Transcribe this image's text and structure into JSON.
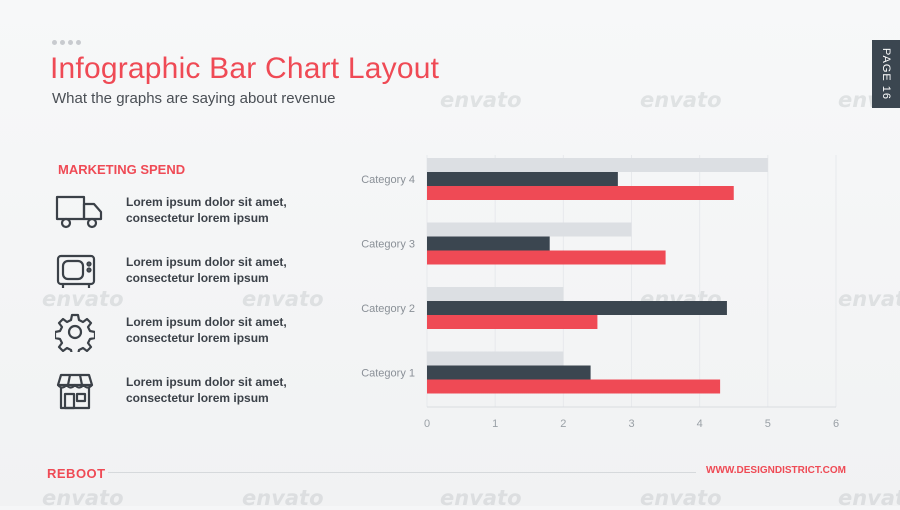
{
  "watermark": "envato",
  "header": {
    "title": "Infographic Bar Chart Layout",
    "subtitle": "What the graphs are saying about revenue",
    "page_tab": "PAGE 16"
  },
  "left_panel": {
    "heading": "MARKETING SPEND",
    "items": [
      {
        "icon": "truck-icon",
        "line1": "Lorem ipsum dolor sit amet,",
        "line2": "consectetur lorem ipsum"
      },
      {
        "icon": "tv-icon",
        "line1": "Lorem ipsum dolor sit amet,",
        "line2": "consectetur lorem ipsum"
      },
      {
        "icon": "gear-icon",
        "line1": "Lorem ipsum dolor sit amet,",
        "line2": "consectetur lorem ipsum"
      },
      {
        "icon": "store-icon",
        "line1": "Lorem ipsum dolor sit amet,",
        "line2": "consectetur lorem ipsum"
      }
    ]
  },
  "footer": {
    "brand": "REBOOT",
    "url": "WWW.DESIGNDISTRICT.COM"
  },
  "colors": {
    "accent": "#ef4a55",
    "dark": "#3b4650",
    "light": "#dcdfe3"
  },
  "chart_data": {
    "type": "bar",
    "orientation": "horizontal",
    "categories": [
      "Category 1",
      "Category 2",
      "Category 3",
      "Category 4"
    ],
    "series": [
      {
        "values": [
          2.0,
          2.0,
          3.0,
          5.0
        ],
        "color": "#dcdfe3"
      },
      {
        "values": [
          2.4,
          4.4,
          1.8,
          2.8
        ],
        "color": "#3b4650"
      },
      {
        "values": [
          4.3,
          2.5,
          3.5,
          4.5
        ],
        "color": "#ef4a55"
      }
    ],
    "xlim": [
      0,
      6
    ],
    "ticks": [
      "0",
      "1",
      "2",
      "3",
      "4",
      "5",
      "6"
    ],
    "grid": true,
    "legend": "none"
  }
}
